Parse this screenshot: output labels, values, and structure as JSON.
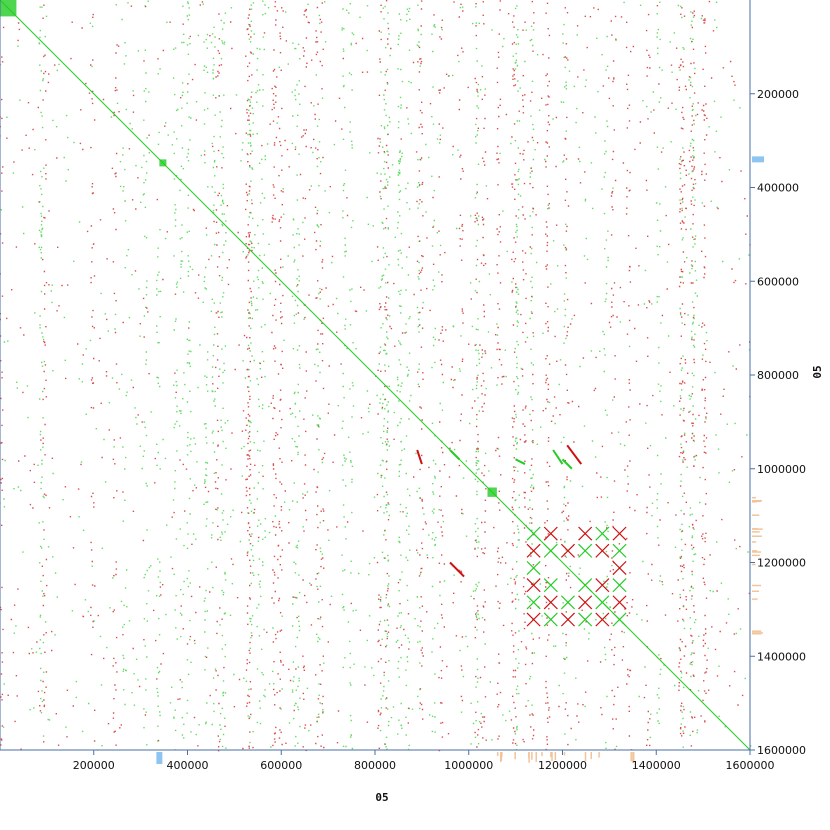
{
  "chart_data": {
    "type": "scatter",
    "plot_kind": "dotplot",
    "xlabel": "05",
    "ylabel": "05",
    "xlim": [
      0,
      1600000
    ],
    "ylim": [
      0,
      1600000
    ],
    "y_inverted": true,
    "x_ticks": [
      200000,
      400000,
      600000,
      800000,
      1000000,
      1200000,
      1400000,
      1600000
    ],
    "x_tick_labels": [
      "200000",
      "400000",
      "600000",
      "800000",
      "1000000",
      "1200000",
      "1400000",
      "1600000"
    ],
    "y_ticks": [
      200000,
      400000,
      600000,
      800000,
      1000000,
      1200000,
      1400000,
      1600000
    ],
    "y_tick_labels": [
      "200000",
      "400000",
      "600000",
      "800000",
      "1000000",
      "1200000",
      "1400000",
      "1600000"
    ],
    "colors": {
      "forward_match": "#22cc22",
      "reverse_match": "#cc1111",
      "axis": "#4a6fa5",
      "density_blue": "#8ec5f0",
      "density_orange": "#f2c49b"
    },
    "series": [
      {
        "name": "forward",
        "color": "#22cc22",
        "segments": [
          [
            0,
            0,
            1600000,
            1600000
          ],
          [
            960000,
            960000,
            980000,
            980000
          ],
          [
            1100000,
            980000,
            1120000,
            990000
          ],
          [
            1180000,
            960000,
            1200000,
            990000
          ],
          [
            1200000,
            980000,
            1220000,
            1000000
          ]
        ],
        "blocks": [
          [
            0,
            0,
            35000,
            35000
          ],
          [
            340000,
            340000,
            355000,
            355000
          ],
          [
            1040000,
            1040000,
            1060000,
            1060000
          ]
        ]
      },
      {
        "name": "reverse",
        "color": "#cc1111",
        "segments": [
          [
            1210000,
            950000,
            1240000,
            990000
          ],
          [
            960000,
            1200000,
            990000,
            1230000
          ],
          [
            890000,
            960000,
            900000,
            990000
          ]
        ]
      }
    ],
    "repeat_region": {
      "x": [
        1120000,
        1340000
      ],
      "y": [
        1120000,
        1340000
      ]
    }
  }
}
